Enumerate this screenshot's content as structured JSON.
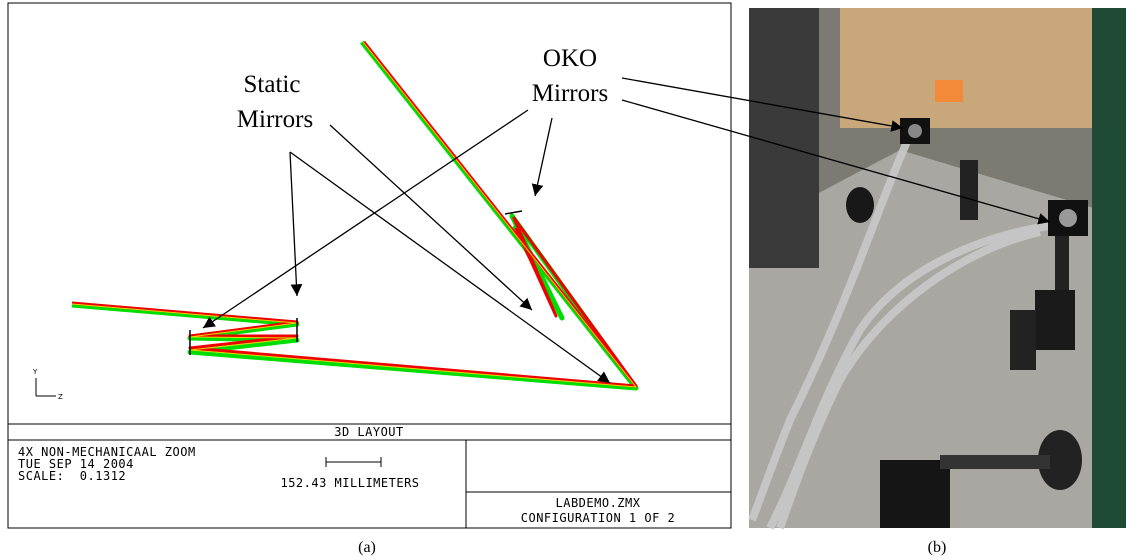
{
  "figure": {
    "panel_a": {
      "labels": {
        "static": [
          "Static",
          "Mirrors"
        ],
        "oko": [
          "OKO",
          "Mirrors"
        ]
      },
      "axis": {
        "y": "Y",
        "z": "Z"
      },
      "footer": {
        "title": "3D LAYOUT",
        "lines": [
          "4X NON-MECHANICAAL ZOOM",
          "TUE SEP 14 2004",
          "SCALE:  0.1312"
        ],
        "scale": "152.43 MILLIMETERS",
        "file": "LABDEMO.ZMX",
        "config": "CONFIGURATION 1 OF 2"
      }
    },
    "captions": [
      "(a)",
      "(b)"
    ]
  }
}
